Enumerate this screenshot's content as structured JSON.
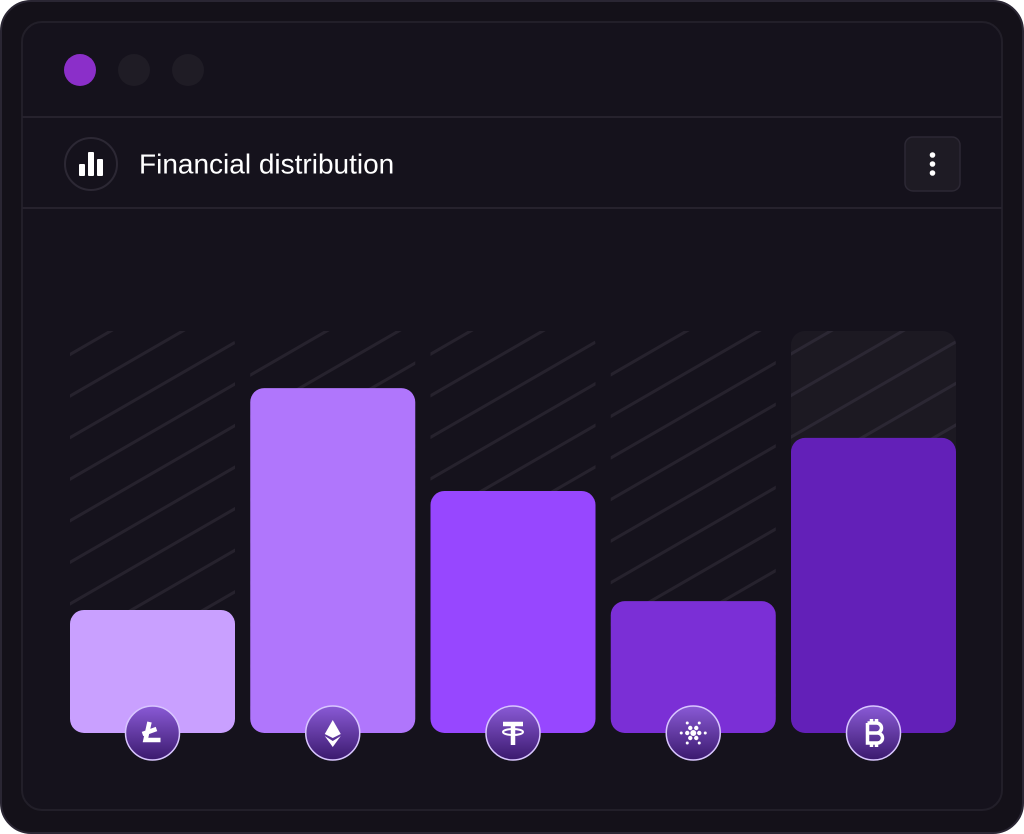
{
  "chart_data": {
    "type": "bar",
    "title": "Financial distribution",
    "categories": [
      null,
      null,
      null,
      null,
      null
    ],
    "values": [
      30.6,
      85.8,
      60.2,
      32.8,
      73.4
    ],
    "colors": [
      "#c9a0ff",
      "#b076fc",
      "#9747ff",
      "#7b2fd6",
      "#6320b8"
    ],
    "ylim": [
      0,
      100
    ]
  }
}
